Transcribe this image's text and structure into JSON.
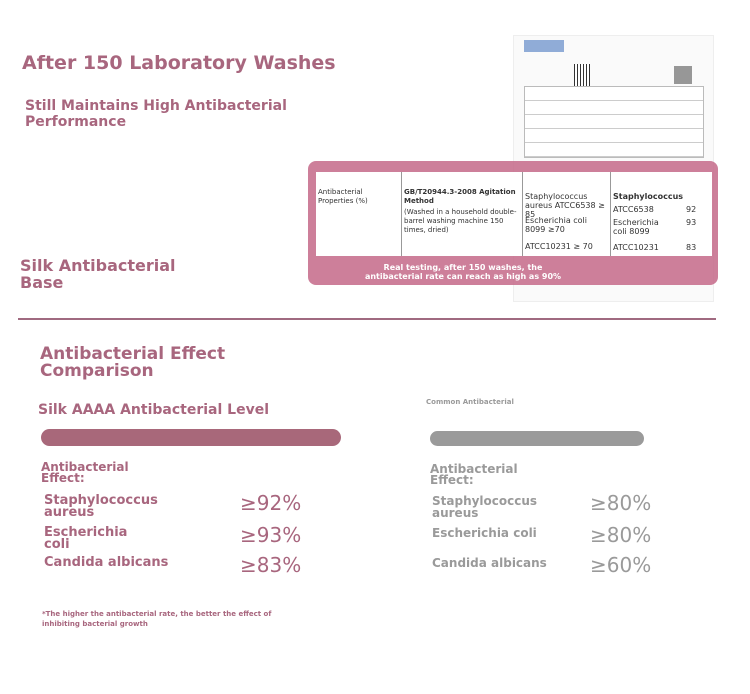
{
  "header": {
    "title": "After 150 Laboratory Washes",
    "subtitle": "Still Maintains High Antibacterial Performance"
  },
  "section_label": "Silk Antibacterial Base",
  "report": {
    "property": "Antibacterial Properties (%)",
    "method": "GB/T20944.3-2008 Agitation Method",
    "method_note": "(Washed in a household double-barrel washing machine 150 times, dried)",
    "requirements": [
      "Staphylococcus aureus ATCC6538 ≥ 85",
      "Escherichia coli 8099 ≥70",
      "ATCC10231 ≥ 70"
    ],
    "results_header": "Staphylococcus",
    "results": [
      {
        "name": "ATCC6538",
        "value": "92"
      },
      {
        "name": "Escherichia coli 8099",
        "value": "93"
      },
      {
        "name": "ATCC10231",
        "value": "83"
      }
    ],
    "note": "Real testing, after 150 washes, the antibacterial rate can reach as high as 90%"
  },
  "comparison": {
    "title": "Antibacterial Effect Comparison",
    "left": {
      "title": "Silk AAAA Antibacterial Level",
      "effect_label": "Antibacterial Effect:",
      "items": [
        {
          "name": "Staphylococcus aureus",
          "value": "≥92%"
        },
        {
          "name": "Escherichia coli",
          "value": "≥93%"
        },
        {
          "name": "Candida albicans",
          "value": "≥83%"
        }
      ]
    },
    "right": {
      "title": "Common Antibacterial",
      "effect_label": "Antibacterial Effect:",
      "items": [
        {
          "name": "Staphylococcus aureus",
          "value": "≥80%"
        },
        {
          "name": "Escherichia coli",
          "value": "≥80%"
        },
        {
          "name": "Candida albicans",
          "value": "≥60%"
        }
      ]
    }
  },
  "footnote": "*The higher the antibacterial rate, the better the effect of inhibiting bacterial growth"
}
